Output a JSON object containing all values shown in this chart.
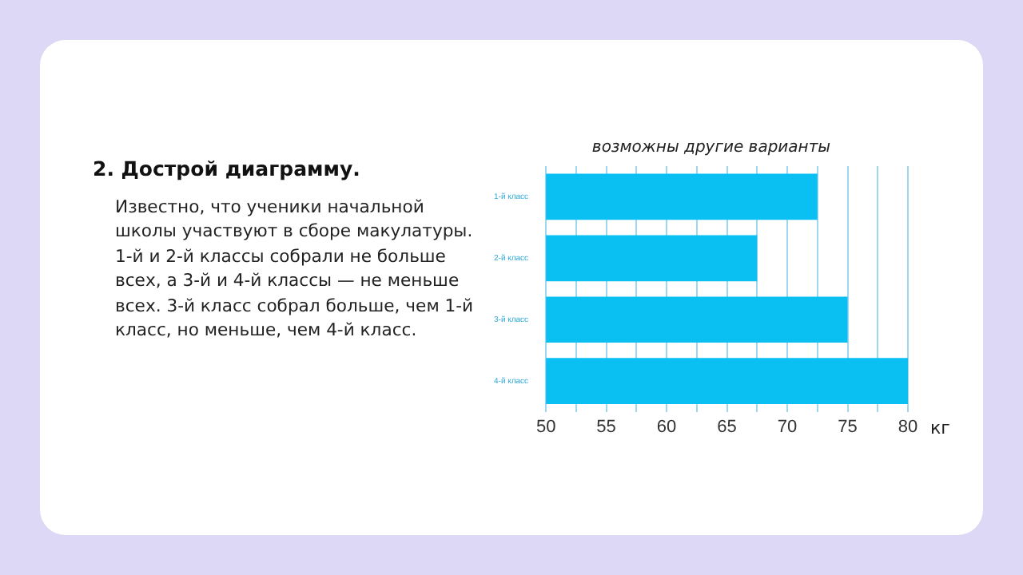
{
  "chart_data": {
    "type": "bar",
    "orientation": "horizontal",
    "title": "2. Дострой диаграмму.",
    "annotations": [
      "возможны другие варианты",
      "Известно, что ученики начальной школы участвуют в сборе макулатуры. 1-й и 2-й классы собрали не больше всех, а 3-й и 4-й классы — не меньше всех. 3-й класс собрал больше, чем 1-й класс, но меньше, чем 4-й класс."
    ],
    "categories": [
      "1-й класс",
      "2-й класс",
      "3-й класс",
      "4-й класс"
    ],
    "values": [
      72.5,
      67.5,
      75,
      80
    ],
    "color": "#0abff2",
    "xlabel": "кг",
    "xlim": [
      50,
      80
    ],
    "xticks": [
      50,
      {
        "value": 52.5,
        "label": null
      },
      55,
      {
        "value": 57.5,
        "label": null
      },
      60,
      {
        "value": 62.5,
        "label": null
      },
      65,
      {
        "value": 67.5,
        "label": null
      },
      70,
      {
        "value": 72.5,
        "label": null
      },
      75,
      {
        "value": 77.5,
        "label": null
      },
      80
    ],
    "grid": "x",
    "legend": false
  }
}
